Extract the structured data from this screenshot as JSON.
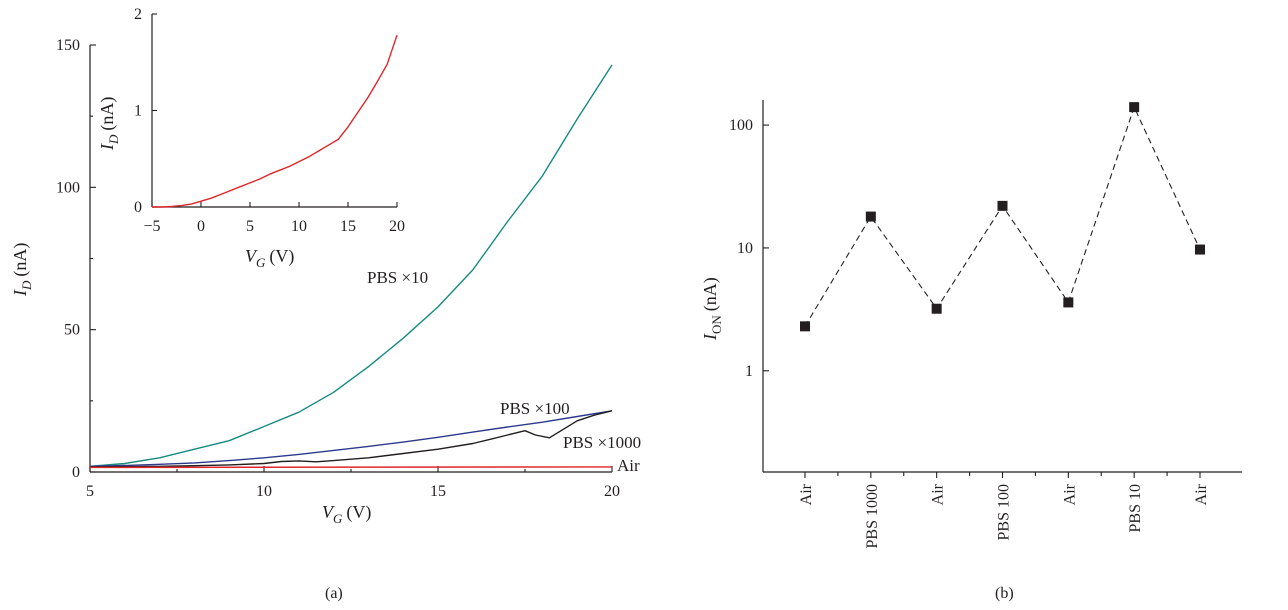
{
  "chart_data": [
    {
      "type": "line",
      "panel_label": "(a)",
      "xlabel": {
        "main": "V",
        "sub": "G",
        "unit": "(V)"
      },
      "ylabel": {
        "main": "I",
        "sub": "D",
        "unit": "(nA)"
      },
      "xlim": [
        5,
        20
      ],
      "ylim": [
        0,
        150
      ],
      "xticks": [
        5,
        10,
        15,
        20
      ],
      "yticks": [
        0,
        50,
        100,
        150
      ],
      "grid": false,
      "series": [
        {
          "name": "PBS ×10",
          "color": "#178a82",
          "x": [
            5,
            6,
            7,
            8,
            9,
            10,
            11,
            12,
            13,
            14,
            15,
            16,
            17,
            18,
            19,
            20
          ],
          "y": [
            2,
            3,
            5,
            8,
            11,
            16,
            21,
            28,
            37,
            47,
            58,
            71,
            88,
            104,
            124,
            143
          ]
        },
        {
          "name": "PBS ×100",
          "color": "#2b3a8e",
          "x": [
            5,
            6,
            7,
            8,
            9,
            10,
            11,
            12,
            13,
            14,
            15,
            16,
            17,
            18,
            19,
            20
          ],
          "y": [
            2,
            2.3,
            2.7,
            3.2,
            4.0,
            5.0,
            6.2,
            7.6,
            9.0,
            10.5,
            12.2,
            14.0,
            15.8,
            17.5,
            19.5,
            21.5
          ]
        },
        {
          "name": "PBS ×1000",
          "color": "#231f20",
          "x": [
            5,
            6,
            7,
            8,
            9,
            10,
            10.5,
            11,
            11.5,
            12,
            13,
            14,
            15,
            16,
            16.5,
            17,
            17.5,
            17.8,
            18.2,
            18.6,
            19,
            19.5,
            20
          ],
          "y": [
            1.8,
            1.9,
            2.0,
            2.2,
            2.5,
            3.0,
            3.7,
            3.9,
            3.6,
            4.0,
            5.0,
            6.5,
            8.0,
            10.0,
            11.5,
            13.0,
            14.5,
            13.0,
            12.0,
            15.0,
            18.0,
            20.0,
            21.5
          ]
        },
        {
          "name": "Air",
          "color": "#e0262b",
          "x": [
            5,
            20
          ],
          "y": [
            1.6,
            1.8
          ]
        }
      ],
      "inset": {
        "type": "line",
        "xlabel": {
          "main": "V",
          "sub": "G",
          "unit": "(V)"
        },
        "ylabel": {
          "main": "I",
          "sub": "D",
          "unit": "(nA)"
        },
        "xlim": [
          -5,
          20
        ],
        "ylim": [
          0,
          2
        ],
        "xticks": [
          -5,
          0,
          5,
          10,
          15,
          20
        ],
        "yticks": [
          0,
          1,
          2
        ],
        "series": [
          {
            "color": "#e0262b",
            "x": [
              -5,
              -4,
              -3,
              -2,
              -1,
              0,
              1,
              2,
              3,
              4,
              5,
              6,
              7,
              8,
              9,
              10,
              11,
              12,
              13,
              14,
              15,
              16,
              17,
              18,
              19,
              20
            ],
            "y": [
              0,
              0,
              0.005,
              0.015,
              0.03,
              0.06,
              0.09,
              0.13,
              0.17,
              0.21,
              0.25,
              0.29,
              0.34,
              0.38,
              0.42,
              0.47,
              0.52,
              0.58,
              0.64,
              0.7,
              0.83,
              0.98,
              1.13,
              1.3,
              1.48,
              1.78
            ]
          }
        ]
      }
    },
    {
      "type": "scatter",
      "panel_label": "(b)",
      "xlabel": "",
      "ylabel": {
        "main": "I",
        "sub": "ON",
        "unit": "(nA)"
      },
      "yscale": "log",
      "ylim": [
        0.15,
        160
      ],
      "yticks": [
        1,
        10,
        100
      ],
      "categories": [
        "Air",
        "PBS 1000",
        "Air",
        "PBS 100",
        "Air",
        "PBS 10",
        "Air"
      ],
      "values": [
        2.3,
        18,
        3.2,
        22,
        3.6,
        140,
        9.7
      ],
      "line_style": "dashed",
      "marker": "square",
      "color": "#231f20"
    }
  ]
}
